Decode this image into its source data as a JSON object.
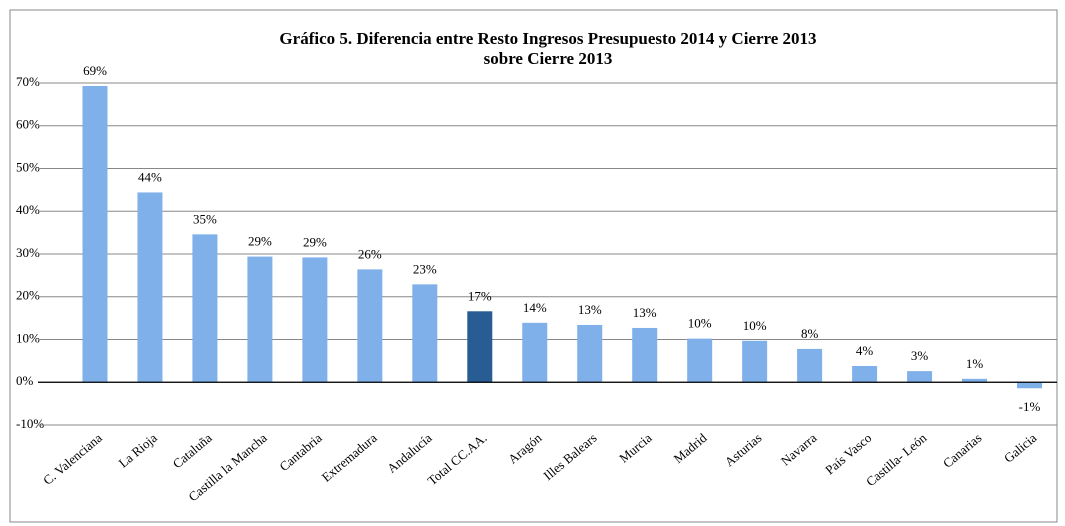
{
  "chart_data": {
    "type": "bar",
    "title": [
      "Gráfico 5. Diferencia entre Resto Ingresos Presupuesto 2014 y Cierre 2013",
      "sobre Cierre 2013"
    ],
    "categories": [
      "C. Valenciana",
      "La Rioja",
      "Cataluña",
      "Castilla la Mancha",
      "Cantabria",
      "Extremadura",
      "Andalucía",
      "Total CC.AA.",
      "Aragón",
      "Illes Balears",
      "Murcia",
      "Madrid",
      "Asturias",
      "Navarra",
      "País Vasco",
      "Castilla- León",
      "Canarias",
      "Galicia"
    ],
    "values": [
      69.3,
      44.4,
      34.6,
      29.4,
      29.2,
      26.4,
      22.9,
      16.6,
      13.9,
      13.4,
      12.7,
      10.2,
      9.7,
      7.8,
      3.8,
      2.6,
      0.8,
      -1.4
    ],
    "value_labels": [
      "69%",
      "44%",
      "35%",
      "29%",
      "29%",
      "26%",
      "23%",
      "17%",
      "14%",
      "13%",
      "13%",
      "10%",
      "10%",
      "8%",
      "4%",
      "3%",
      "1%",
      "-1%"
    ],
    "colors": [
      "#7fb0ea",
      "#7fb0ea",
      "#7fb0ea",
      "#7fb0ea",
      "#7fb0ea",
      "#7fb0ea",
      "#7fb0ea",
      "#275d93",
      "#7fb0ea",
      "#7fb0ea",
      "#7fb0ea",
      "#7fb0ea",
      "#7fb0ea",
      "#7fb0ea",
      "#7fb0ea",
      "#7fb0ea",
      "#7fb0ea",
      "#7fb0ea"
    ],
    "ylim": [
      -10,
      70
    ],
    "yticks": [
      {
        "value": -10,
        "label": "-10%"
      },
      {
        "value": 0,
        "label": "0%"
      },
      {
        "value": 10,
        "label": "10%"
      },
      {
        "value": 20,
        "label": "20%"
      },
      {
        "value": 30,
        "label": "30%"
      },
      {
        "value": 40,
        "label": "40%"
      },
      {
        "value": 50,
        "label": "50%"
      },
      {
        "value": 60,
        "label": "60%"
      },
      {
        "value": 70,
        "label": "70%"
      }
    ],
    "grid": true
  }
}
